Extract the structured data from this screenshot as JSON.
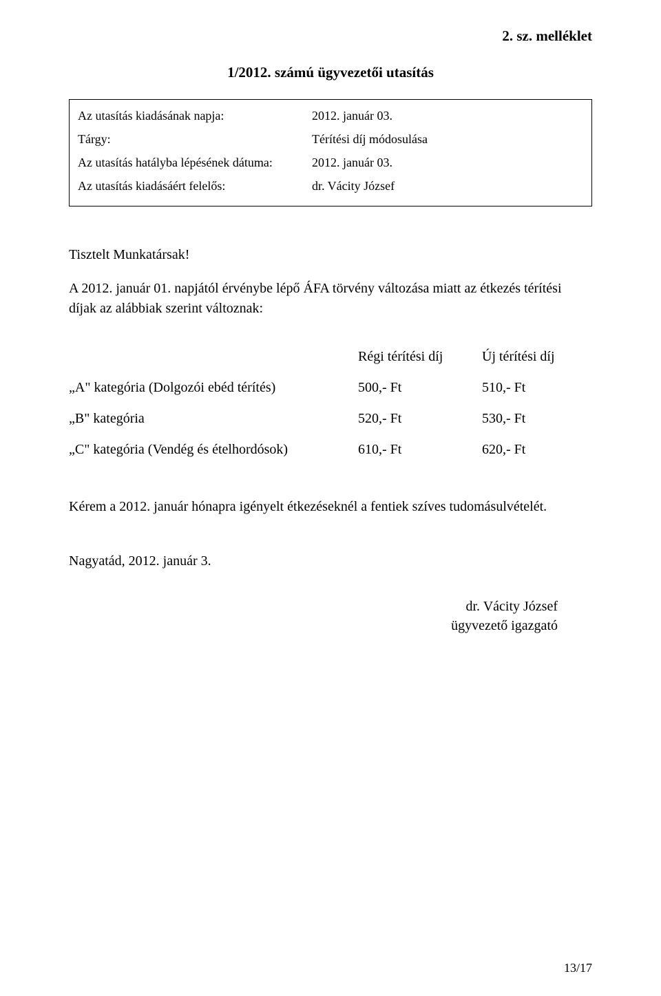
{
  "attachment_heading": "2. sz. melléklet",
  "doc_title": "1/2012. számú ügyvezetői utasítás",
  "meta": {
    "issue_date_label": "Az utasítás kiadásának napja:",
    "issue_date_value": "2012. január 03.",
    "subject_label": "Tárgy:",
    "subject_value": "Térítési díj módosulása",
    "effective_label": "Az utasítás hatályba lépésének dátuma:",
    "effective_value": "2012. január 03.",
    "responsible_label": "Az utasítás kiadásáért felelős:",
    "responsible_value": "dr. Vácity József"
  },
  "greeting": "Tisztelt Munkatársak!",
  "intro": "A 2012. január 01. napjától érvénybe lépő ÁFA törvény változása miatt az étkezés térítési díjak az alábbiak szerint változnak:",
  "fees": {
    "header_old": "Régi térítési díj",
    "header_new": "Új térítési díj",
    "rows": [
      {
        "label": "„A\" kategória (Dolgozói ebéd térítés)",
        "old": "500,- Ft",
        "new": "510,- Ft"
      },
      {
        "label": "„B\" kategória",
        "old": "520,- Ft",
        "new": "530,- Ft"
      },
      {
        "label": "„C\" kategória (Vendég és ételhordósok)",
        "old": "610,- Ft",
        "new": "620,- Ft"
      }
    ]
  },
  "closing": "Kérem a 2012. január hónapra igényelt étkezéseknél a fentiek szíves tudomásulvételét.",
  "date_line": "Nagyatád, 2012. január 3.",
  "signature": {
    "name": "dr. Vácity József",
    "title": "ügyvezető igazgató"
  },
  "page_num": "13/17",
  "colors": {
    "text": "#000000",
    "background": "#ffffff",
    "border": "#000000"
  },
  "typography": {
    "font_family": "Times New Roman",
    "heading_fontsize": 21,
    "body_fontsize": 20,
    "meta_fontsize": 18
  }
}
